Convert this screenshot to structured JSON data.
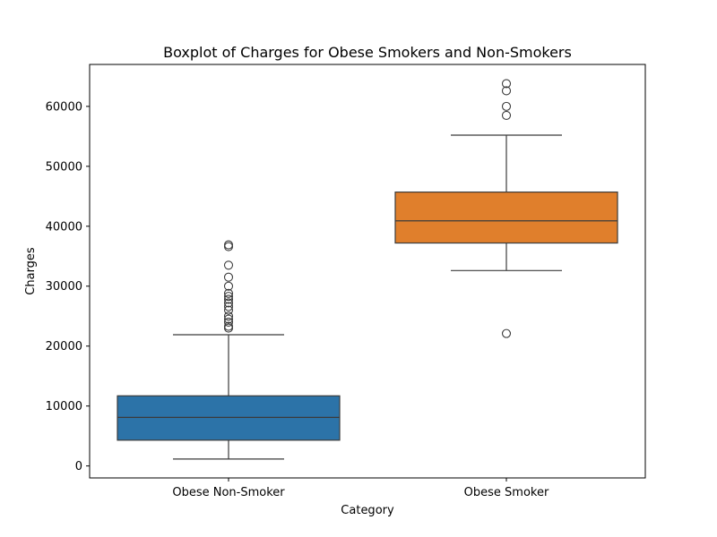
{
  "chart_data": {
    "type": "boxplot",
    "title": "Boxplot of Charges for Obese Smokers and Non-Smokers",
    "xlabel": "Category",
    "ylabel": "Charges",
    "ylim": [
      -2000,
      67000
    ],
    "yticks": [
      0,
      10000,
      20000,
      30000,
      40000,
      50000,
      60000
    ],
    "categories": [
      "Obese Non-Smoker",
      "Obese Smoker"
    ],
    "boxes": [
      {
        "category": "Obese Non-Smoker",
        "color": "#2c73a8",
        "whisker_low": 1150,
        "q1": 4300,
        "median": 8100,
        "q3": 11700,
        "whisker_high": 21900,
        "outliers": [
          23000,
          23300,
          24000,
          24500,
          25000,
          26000,
          26600,
          27200,
          27800,
          28300,
          28800,
          30000,
          31500,
          33500,
          36600,
          36900
        ]
      },
      {
        "category": "Obese Smoker",
        "color": "#e07f2c",
        "whisker_low": 32600,
        "q1": 37200,
        "median": 40900,
        "q3": 45700,
        "whisker_high": 55200,
        "outliers": [
          22100,
          58500,
          60000,
          62600,
          63800
        ]
      }
    ]
  }
}
